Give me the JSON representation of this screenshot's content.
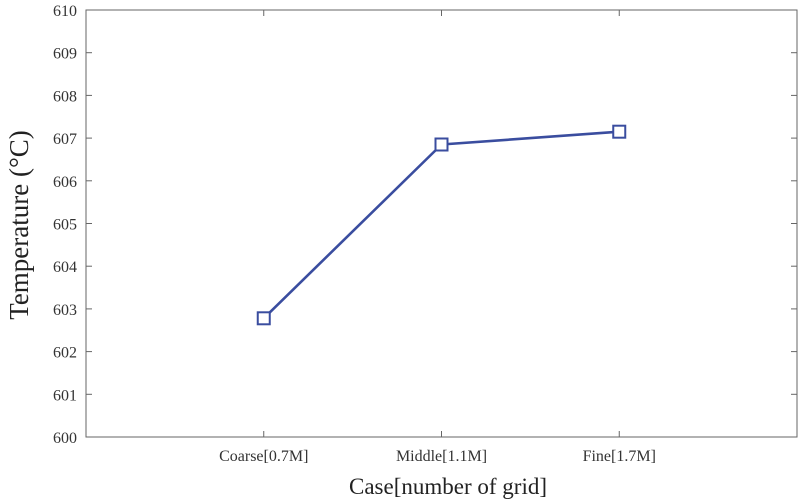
{
  "chart_data": {
    "type": "line",
    "title": "",
    "xlabel": "Case[number of grid]",
    "ylabel": "Temperature (°C)",
    "categories": [
      "Coarse[0.7M]",
      "Middle[1.1M]",
      "Fine[1.7M]"
    ],
    "series": [
      {
        "values": [
          602.78,
          606.85,
          607.15
        ],
        "color": "#3a4d9f",
        "marker": "square"
      }
    ],
    "ylim": [
      600,
      610
    ],
    "yticks": [
      600,
      601,
      602,
      603,
      604,
      605,
      606,
      607,
      608,
      609,
      610
    ],
    "grid": false,
    "legend": "none"
  }
}
